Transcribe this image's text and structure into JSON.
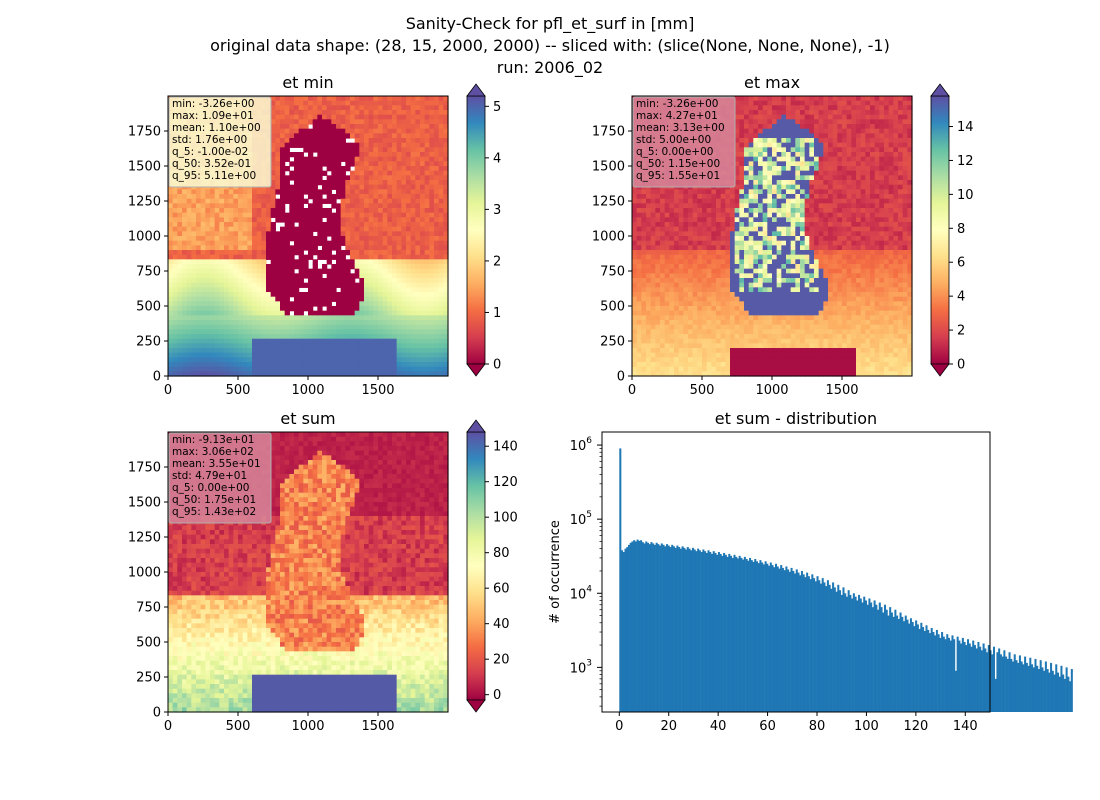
{
  "figure": {
    "title_lines": [
      "Sanity-Check for pfl_et_surf in [mm]",
      "original data shape: (28, 15, 2000, 2000) -- sliced with: (slice(None, None, None), -1)",
      "run: 2006_02"
    ]
  },
  "chart_data": [
    {
      "type": "heatmap",
      "title": "et min",
      "xlim": [
        0,
        2000
      ],
      "ylim": [
        0,
        2000
      ],
      "xticks": [
        "0",
        "500",
        "1000",
        "1500"
      ],
      "yticks": [
        "0",
        "250",
        "500",
        "750",
        "1000",
        "1250",
        "1500",
        "1750"
      ],
      "colormap": "Spectral",
      "colorbar": {
        "range": [
          0,
          5.2
        ],
        "ticks": [
          "0",
          "1",
          "2",
          "3",
          "4",
          "5"
        ],
        "extend": "both"
      },
      "stats": [
        "min: -3.26e+00",
        "max: 1.09e+01",
        "mean: 1.10e+00",
        "std: 1.76e+00",
        "q_5: -1.00e-02",
        "q_50: 3.52e-01",
        "q_95: 5.11e+00"
      ],
      "stats_box_color": "#fafad2"
    },
    {
      "type": "heatmap",
      "title": "et max",
      "xlim": [
        0,
        2000
      ],
      "ylim": [
        0,
        2000
      ],
      "xticks": [
        "0",
        "500",
        "1000",
        "1500"
      ],
      "yticks": [
        "0",
        "250",
        "500",
        "750",
        "1000",
        "1250",
        "1500",
        "1750"
      ],
      "colormap": "Spectral",
      "colorbar": {
        "range": [
          0,
          15.8
        ],
        "ticks": [
          "0",
          "2",
          "4",
          "6",
          "8",
          "10",
          "12",
          "14"
        ],
        "extend": "both"
      },
      "stats": [
        "min: -3.26e+00",
        "max: 4.27e+01",
        "mean: 3.13e+00",
        "std: 5.00e+00",
        "q_5: 0.00e+00",
        "q_50: 1.15e+00",
        "q_95: 1.55e+01"
      ],
      "stats_box_color": "#d6869a"
    },
    {
      "type": "heatmap",
      "title": "et sum",
      "xlim": [
        0,
        2000
      ],
      "ylim": [
        0,
        2000
      ],
      "xticks": [
        "0",
        "500",
        "1000",
        "1500"
      ],
      "yticks": [
        "0",
        "250",
        "500",
        "750",
        "1000",
        "1250",
        "1500",
        "1750"
      ],
      "colormap": "Spectral",
      "colorbar": {
        "range": [
          -3,
          148
        ],
        "ticks": [
          "0",
          "20",
          "40",
          "60",
          "80",
          "100",
          "120",
          "140"
        ],
        "extend": "both"
      },
      "stats": [
        "min: -9.13e+01",
        "max: 3.06e+02",
        "mean: 3.55e+01",
        "std: 4.79e+01",
        "q_5: 0.00e+00",
        "q_50: 1.75e+01",
        "q_95: 1.43e+02"
      ],
      "stats_box_color": "#d6869a"
    },
    {
      "type": "bar",
      "title": "et sum - distribution",
      "xlabel": "",
      "ylabel": "# of occurrence",
      "xlim": [
        -7,
        150
      ],
      "ylim": [
        250,
        1500000
      ],
      "yscale": "log",
      "xticks": [
        "0",
        "20",
        "40",
        "60",
        "80",
        "100",
        "120",
        "140"
      ],
      "yticks": [
        {
          "base": "10",
          "exp": "3",
          "value": 1000
        },
        {
          "base": "10",
          "exp": "4",
          "value": 10000
        },
        {
          "base": "10",
          "exp": "5",
          "value": 100000
        },
        {
          "base": "10",
          "exp": "6",
          "value": 1000000
        }
      ],
      "bar_color": "#1f77b4",
      "bin_width": 0.7,
      "x_start": 0,
      "values": [
        900000,
        38000,
        36000,
        40000,
        42000,
        45000,
        48000,
        50000,
        52000,
        50000,
        53000,
        51000,
        52000,
        49000,
        47000,
        50000,
        48000,
        46000,
        49000,
        47000,
        45000,
        48000,
        46000,
        44000,
        47000,
        45000,
        43000,
        46000,
        44000,
        42000,
        45000,
        43000,
        41000,
        44000,
        42000,
        40000,
        43000,
        41000,
        39000,
        42000,
        40000,
        38000,
        41000,
        39000,
        37000,
        40000,
        38000,
        36000,
        39000,
        37000,
        35000,
        38000,
        36000,
        34000,
        37000,
        35000,
        33000,
        36000,
        34000,
        32000,
        35000,
        33000,
        31000,
        34000,
        32000,
        30000,
        33000,
        31000,
        29500,
        32000,
        30000,
        28500,
        31000,
        29000,
        27500,
        30000,
        28000,
        26500,
        29000,
        27000,
        25500,
        28000,
        26000,
        24500,
        27000,
        25000,
        23500,
        26000,
        24000,
        22500,
        25000,
        23000,
        21500,
        24000,
        22000,
        20500,
        23000,
        21000,
        19500,
        22000,
        20000,
        18500,
        21000,
        19000,
        17500,
        20000,
        18000,
        16500,
        19000,
        17000,
        15500,
        18000,
        16000,
        14500,
        17000,
        15000,
        13500,
        16000,
        14000,
        12500,
        15000,
        13000,
        11500,
        14000,
        12000,
        10500,
        13000,
        11000,
        9500,
        12000,
        10000,
        9000,
        11000,
        9500,
        8500,
        10000,
        9000,
        8000,
        9500,
        8500,
        7500,
        9000,
        8000,
        7000,
        8500,
        7500,
        6500,
        8000,
        7000,
        6000,
        7500,
        6500,
        5500,
        7000,
        6000,
        5000,
        6500,
        5500,
        4800,
        6000,
        5000,
        4500,
        5500,
        4800,
        4200,
        5000,
        4400,
        3900,
        4600,
        4100,
        3600,
        4300,
        3800,
        3300,
        4000,
        3500,
        3100,
        3700,
        3200,
        2900,
        3400,
        3000,
        2700,
        3200,
        2800,
        2500,
        3000,
        2600,
        2400,
        2800,
        2500,
        2300,
        2700,
        2400,
        900,
        2600,
        2300,
        2100,
        2500,
        2200,
        2000,
        2400,
        2100,
        1900,
        2300,
        2000,
        1800,
        2200,
        1900,
        1700,
        2100,
        1800,
        1600,
        2000,
        1700,
        1500,
        1900,
        700,
        1600,
        1800,
        1500,
        1400,
        1700,
        1400,
        1300,
        1600,
        1300,
        1200,
        1500,
        1250,
        1150,
        1450,
        1200,
        1100,
        1400,
        1150,
        1050,
        1350,
        1100,
        1000,
        1300,
        1050,
        950,
        1250,
        1000,
        900,
        1200,
        950,
        850,
        1150,
        900,
        800,
        1100,
        850,
        750,
        1050,
        800,
        700,
        1000,
        750,
        650,
        950
      ]
    }
  ]
}
